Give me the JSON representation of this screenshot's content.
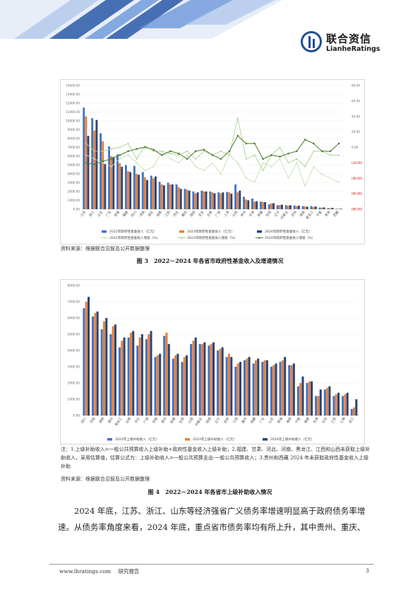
{
  "logo": {
    "cn": "联合资信",
    "en": "LianheRatings"
  },
  "figure3": {
    "caption": "图 3　2022－2024 年各省市政府性基金收入及增速情况",
    "source": "资料来源：根据联合见智及公开数据整理",
    "legend": [
      "2022年政府性基金收入（亿元）",
      "2023年政府性基金收入（亿元）",
      "2024年政府性基金收入（亿元）",
      "2022年政府性基金收入增速（%）",
      "2023年政府性基金收入增速（%）",
      "2024年政府性基金收入增速（%）"
    ],
    "left_ticks": [
      "0.00",
      "1000.00",
      "2000.00",
      "3000.00",
      "4000.00",
      "5000.00",
      "6000.00",
      "7000.00",
      "8000.00",
      "9000.00",
      "10000.00",
      "11000.00",
      "12000.00",
      "13000.00",
      "14000.00"
    ],
    "right_ticks": [
      "(80.00)",
      "(60.00)",
      "(40.00)",
      "(20.00)",
      "0.00",
      "20.00",
      "40.00",
      "60.00",
      "80.00"
    ],
    "chart_data": {
      "type": "bar",
      "categories": [
        "江苏",
        "浙江",
        "山东",
        "广东",
        "安徽",
        "福建",
        "四川",
        "河南",
        "湖北",
        "湖南",
        "江西",
        "河北",
        "重庆",
        "陕西",
        "北京",
        "云南",
        "广西",
        "上海",
        "山西",
        "贵州",
        "天津",
        "新疆",
        "甘肃",
        "辽宁",
        "内蒙古",
        "吉林",
        "海南",
        "黑龙江",
        "宁夏",
        "青海",
        "西藏"
      ],
      "ylim": [
        0,
        14000
      ],
      "y2lim": [
        -80,
        80
      ],
      "series": [
        {
          "name": "2022年政府性基金收入（亿元）",
          "values": [
            11500,
            10300,
            8600,
            7100,
            6200,
            5000,
            4900,
            4200,
            3800,
            3100,
            3000,
            2800,
            2300,
            2000,
            2100,
            2000,
            1900,
            1950,
            2800,
            1400,
            1200,
            850,
            550,
            450,
            450,
            420,
            350,
            350,
            180,
            120,
            50
          ]
        },
        {
          "name": "2023年政府性基金收入（亿元）",
          "values": [
            10500,
            8900,
            7700,
            6000,
            5200,
            4300,
            4000,
            3600,
            3500,
            2800,
            2800,
            2500,
            2200,
            1800,
            2000,
            1900,
            1800,
            1900,
            1900,
            1100,
            850,
            800,
            650,
            480,
            400,
            350,
            300,
            250,
            180,
            120,
            50
          ]
        },
        {
          "name": "2024年政府性基金收入（亿元）",
          "values": [
            8300,
            10100,
            5100,
            5900,
            4800,
            4200,
            3900,
            3300,
            3700,
            2700,
            2800,
            2300,
            2100,
            1900,
            2000,
            1800,
            1900,
            1750,
            2100,
            1000,
            900,
            800,
            680,
            500,
            450,
            400,
            280,
            300,
            200,
            150,
            60
          ]
        },
        {
          "name": "2022年政府性基金收入增速（%）",
          "values": [
            -10,
            -15,
            -20,
            -25,
            -15,
            -10,
            -20,
            -30,
            -25,
            -5,
            -15,
            -20,
            -10,
            -25,
            -30,
            -20,
            -35,
            -10,
            -20,
            -40,
            -45,
            -20,
            -25,
            -15,
            -40,
            -20,
            -50,
            -25,
            -35,
            -40,
            -45
          ]
        },
        {
          "name": "2023年政府性基金收入增速（%）",
          "values": [
            5,
            -5,
            -5,
            -2,
            0,
            5,
            -15,
            2,
            -5,
            -5,
            -8,
            -10,
            -5,
            -15,
            -5,
            -10,
            -5,
            -10,
            38,
            -15,
            -10,
            -30,
            -10,
            0,
            -20,
            -15,
            -25,
            -5,
            -5,
            -10,
            -10
          ]
        },
        {
          "name": "2024年政府性基金收入增速（%）",
          "values": [
            -20,
            -22,
            -18,
            -15,
            -10,
            -5,
            -2,
            0,
            -3,
            -10,
            -5,
            -8,
            -15,
            -5,
            -3,
            -10,
            -15,
            -5,
            15,
            5,
            5,
            -15,
            -10,
            -12,
            -8,
            -5,
            10,
            5,
            -5,
            -5,
            5
          ]
        }
      ]
    }
  },
  "figure4": {
    "caption": "图 4　2022－2024 年各省市上级补助收入情况",
    "note": "注：1.上级补助收入=一般公共预算收入上级补助+政府性基金收入上级补助；2.福建、甘肃、河北、河南、黑龙江、江西和山西未获取上级补助收入，采用估算值，估算公式为：上级补助收入=一般公共预算支出-一般公共预算收入；3.贵州和西藏 2024 年未获取政府性基金收入上级补助",
    "source": "资料来源：根据联合见智及公开数据整理",
    "legend": [
      "2022年上级补助收入（亿元）",
      "2023年上级补助收入（亿元）",
      "2024年上级补助收入（亿元）"
    ],
    "ticks": [
      "0.00",
      "1000.00",
      "2000.00",
      "3000.00",
      "4000.00",
      "5000.00",
      "6000.00",
      "7000.00",
      "8000.00"
    ],
    "chart_data": {
      "type": "bar",
      "categories": [
        "四川",
        "河南",
        "湖南",
        "湖北",
        "黑龙江",
        "云南",
        "河北",
        "广西",
        "安徽",
        "贵州",
        "新疆",
        "甘肃",
        "山西",
        "内蒙古",
        "陕西",
        "辽宁",
        "吉林",
        "江西",
        "重庆",
        "西藏",
        "广东",
        "山东",
        "青海",
        "海南",
        "宁夏",
        "福建",
        "天津",
        "北京",
        "江苏",
        "上海",
        "浙江"
      ],
      "ylim": [
        0,
        8000
      ],
      "series": [
        {
          "name": "2022年上级补助收入（亿元）",
          "values": [
            6600,
            6100,
            5300,
            5000,
            4200,
            4800,
            4300,
            4700,
            3600,
            4900,
            3500,
            3300,
            4400,
            4400,
            4300,
            4000,
            3600,
            3000,
            3400,
            3200,
            3300,
            3000,
            3300,
            3100,
            1800,
            2000,
            1200,
            1600,
            1200,
            1200,
            400
          ]
        },
        {
          "name": "2023年上级补助收入（亿元）",
          "values": [
            7000,
            6300,
            5800,
            5500,
            4600,
            5100,
            4800,
            5000,
            3700,
            5100,
            3700,
            3600,
            4600,
            4400,
            4400,
            4100,
            3800,
            3200,
            3500,
            3400,
            3400,
            3100,
            3400,
            3100,
            2000,
            2100,
            1200,
            1700,
            1300,
            1300,
            500
          ]
        },
        {
          "name": "2024年上级补助收入（亿元）",
          "values": [
            7300,
            6400,
            6000,
            5600,
            4800,
            5200,
            5000,
            5200,
            3800,
            4400,
            3800,
            3700,
            4800,
            4500,
            4500,
            4200,
            3600,
            3300,
            3600,
            3500,
            3400,
            3200,
            3600,
            3200,
            2400,
            2100,
            1600,
            1800,
            1400,
            1400,
            1000
          ]
        }
      ]
    }
  },
  "paragraph": "2024 年底，江苏、浙江、山东等经济强省广义债务率增速明显高于政府债务率增速。从债务率角度来看，2024 年底，重点省市债务率均有所上升，其中贵州、重庆、",
  "footer": {
    "site": "www.lhratings.com",
    "label": "研究报告",
    "page": "3"
  },
  "colors": {
    "blue": "#4472c4",
    "orange": "#ed7d31",
    "navy": "#264478",
    "green_light": "#c5e0b4",
    "green_mid": "#a9d18e",
    "green_dark": "#548235",
    "brand": "#1f4e96"
  }
}
